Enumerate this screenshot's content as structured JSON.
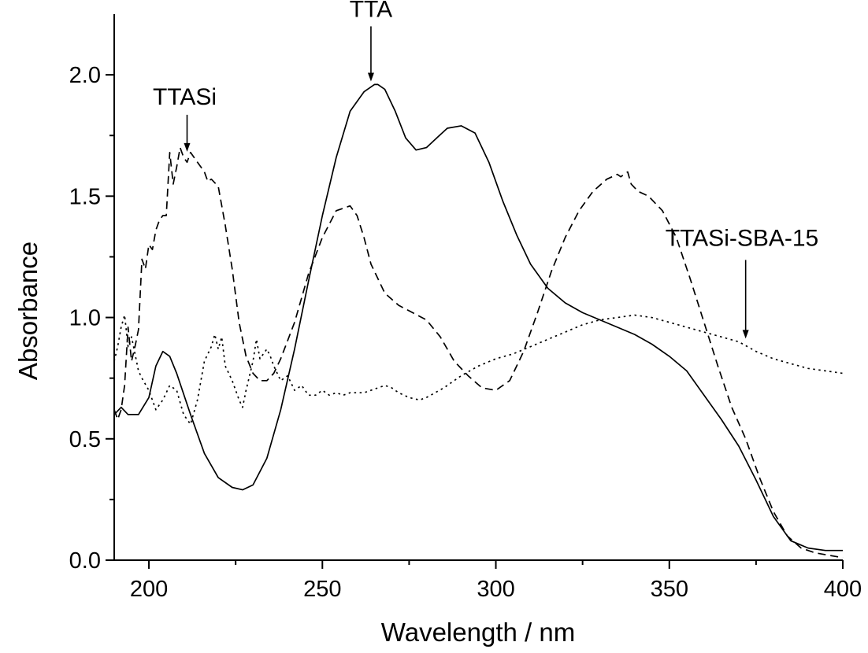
{
  "chart_data": {
    "type": "line",
    "xlabel": "Wavelength / nm",
    "ylabel": "Absorbance",
    "xlim": [
      190,
      400
    ],
    "ylim": [
      0,
      2.25
    ],
    "xticks": [
      200,
      250,
      300,
      350,
      400
    ],
    "xtick_labels": [
      "200",
      "250",
      "300",
      "350",
      "400"
    ],
    "yticks": [
      0.0,
      0.5,
      1.0,
      1.5,
      2.0
    ],
    "ytick_labels": [
      "0.0",
      "0.5",
      "1.0",
      "1.5",
      "2.0"
    ],
    "grid": false,
    "legend": "none",
    "series": [
      {
        "name": "TTA",
        "line_style": "solid",
        "color": "#000000",
        "x": [
          190,
          192,
          194,
          197,
          200,
          202,
          204,
          206,
          208,
          212,
          216,
          220,
          224,
          227,
          230,
          234,
          238,
          242,
          246,
          250,
          254,
          258,
          262,
          265,
          266,
          268,
          271,
          274,
          277,
          280,
          283,
          286,
          290,
          294,
          298,
          302,
          306,
          310,
          315,
          320,
          325,
          330,
          335,
          340,
          345,
          350,
          355,
          360,
          365,
          370,
          375,
          380,
          385,
          390,
          395,
          400
        ],
        "y": [
          0.6,
          0.63,
          0.6,
          0.6,
          0.67,
          0.8,
          0.86,
          0.84,
          0.77,
          0.6,
          0.44,
          0.34,
          0.3,
          0.29,
          0.31,
          0.42,
          0.62,
          0.87,
          1.15,
          1.42,
          1.66,
          1.85,
          1.93,
          1.96,
          1.96,
          1.94,
          1.85,
          1.74,
          1.69,
          1.7,
          1.74,
          1.78,
          1.79,
          1.76,
          1.64,
          1.48,
          1.34,
          1.22,
          1.12,
          1.06,
          1.02,
          0.99,
          0.96,
          0.93,
          0.89,
          0.84,
          0.78,
          0.68,
          0.58,
          0.47,
          0.33,
          0.18,
          0.08,
          0.05,
          0.04,
          0.04
        ]
      },
      {
        "name": "TTASi",
        "line_style": "dashed",
        "color": "#000000",
        "x": [
          190,
          191,
          192,
          193,
          194,
          195,
          196,
          197,
          198,
          199,
          200,
          201,
          202,
          203,
          204,
          205,
          206,
          207,
          208,
          209,
          210,
          211,
          212,
          213,
          214,
          216,
          217,
          218,
          220,
          222,
          224,
          226,
          228,
          230,
          232,
          234,
          236,
          238,
          242,
          246,
          250,
          254,
          258,
          260,
          262,
          264,
          268,
          272,
          276,
          280,
          284,
          288,
          292,
          296,
          300,
          304,
          308,
          312,
          316,
          320,
          324,
          328,
          332,
          335,
          336,
          338,
          339,
          341,
          344,
          348,
          352,
          356,
          360,
          364,
          368,
          372,
          376,
          380,
          384,
          388,
          392,
          396,
          400
        ],
        "y": [
          0.62,
          0.58,
          0.62,
          0.72,
          0.96,
          0.82,
          0.88,
          0.95,
          1.24,
          1.2,
          1.3,
          1.28,
          1.36,
          1.4,
          1.42,
          1.42,
          1.68,
          1.55,
          1.62,
          1.7,
          1.66,
          1.64,
          1.68,
          1.66,
          1.64,
          1.6,
          1.56,
          1.57,
          1.54,
          1.38,
          1.2,
          0.98,
          0.84,
          0.77,
          0.74,
          0.74,
          0.77,
          0.83,
          0.98,
          1.18,
          1.33,
          1.44,
          1.46,
          1.42,
          1.33,
          1.22,
          1.1,
          1.05,
          1.02,
          0.99,
          0.92,
          0.82,
          0.76,
          0.71,
          0.7,
          0.74,
          0.86,
          1.02,
          1.19,
          1.33,
          1.44,
          1.52,
          1.57,
          1.59,
          1.58,
          1.6,
          1.55,
          1.52,
          1.5,
          1.44,
          1.33,
          1.16,
          0.98,
          0.8,
          0.63,
          0.5,
          0.34,
          0.2,
          0.1,
          0.05,
          0.03,
          0.02,
          0.01
        ]
      },
      {
        "name": "TTASi-SBA-15",
        "line_style": "dotted",
        "color": "#000000",
        "x": [
          190,
          191,
          192,
          193,
          194,
          195,
          196,
          197,
          198,
          200,
          202,
          204,
          206,
          208,
          210,
          212,
          214,
          216,
          218,
          219,
          220,
          221,
          222,
          224,
          226,
          227,
          228,
          230,
          231,
          232,
          234,
          235,
          236,
          238,
          240,
          242,
          244,
          246,
          248,
          250,
          252,
          254,
          256,
          258,
          260,
          262,
          264,
          266,
          268,
          270,
          272,
          275,
          278,
          280,
          285,
          290,
          295,
          300,
          305,
          310,
          315,
          320,
          325,
          330,
          335,
          340,
          345,
          350,
          355,
          360,
          365,
          370,
          375,
          380,
          385,
          390,
          395,
          400
        ],
        "y": [
          0.82,
          0.88,
          0.96,
          1.01,
          0.88,
          0.92,
          0.85,
          0.78,
          0.75,
          0.7,
          0.62,
          0.66,
          0.72,
          0.7,
          0.6,
          0.56,
          0.66,
          0.82,
          0.88,
          0.93,
          0.87,
          0.92,
          0.8,
          0.74,
          0.66,
          0.63,
          0.7,
          0.82,
          0.91,
          0.83,
          0.87,
          0.84,
          0.8,
          0.74,
          0.76,
          0.7,
          0.72,
          0.68,
          0.68,
          0.7,
          0.68,
          0.69,
          0.68,
          0.69,
          0.69,
          0.69,
          0.7,
          0.71,
          0.72,
          0.71,
          0.69,
          0.67,
          0.66,
          0.67,
          0.71,
          0.76,
          0.8,
          0.83,
          0.85,
          0.88,
          0.91,
          0.94,
          0.97,
          0.99,
          1.0,
          1.01,
          1.0,
          0.98,
          0.96,
          0.94,
          0.92,
          0.9,
          0.86,
          0.83,
          0.81,
          0.79,
          0.78,
          0.77
        ]
      }
    ],
    "annotations": [
      {
        "text": "TTA",
        "arrow_to": [
          264,
          1.96
        ]
      },
      {
        "text": "TTASi",
        "arrow_to": [
          211,
          1.67
        ]
      },
      {
        "text": "TTASi-SBA-15",
        "arrow_to": [
          372,
          0.9
        ]
      }
    ]
  }
}
